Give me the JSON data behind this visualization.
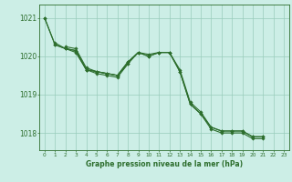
{
  "bg_color": "#cceee6",
  "grid_color": "#99ccbb",
  "line_color": "#2d6e2d",
  "marker_color": "#2d6e2d",
  "xlabel": "Graphe pression niveau de la mer (hPa)",
  "xlabel_fontsize": 5.5,
  "ytick_fontsize": 5.5,
  "xtick_fontsize": 4.2,
  "yticks": [
    1018,
    1019,
    1020,
    1021
  ],
  "xticks": [
    0,
    1,
    2,
    3,
    4,
    5,
    6,
    7,
    8,
    9,
    10,
    11,
    12,
    13,
    14,
    15,
    16,
    17,
    18,
    19,
    20,
    21,
    22,
    23
  ],
  "ylim": [
    1017.55,
    1021.35
  ],
  "xlim": [
    -0.5,
    23.5
  ],
  "series2": {
    "line1": {
      "x": [
        0,
        1,
        2,
        3,
        4,
        5,
        6,
        7,
        8,
        9,
        10,
        11,
        12,
        13,
        14,
        15,
        16,
        17,
        18,
        19,
        20,
        21
      ],
      "y": [
        1021.0,
        1020.3,
        1020.2,
        1020.15,
        1019.65,
        1019.6,
        1019.55,
        1019.5,
        1019.8,
        1020.1,
        1020.0,
        1020.1,
        1020.1,
        1019.6,
        1018.75,
        1018.5,
        1018.1,
        1018.0,
        1018.0,
        1018.0,
        1017.85,
        1017.85
      ]
    },
    "line2": {
      "x": [
        0,
        1,
        2,
        3,
        4,
        5,
        6,
        7,
        8
      ],
      "y": [
        1021.0,
        1020.3,
        1020.2,
        1020.1,
        1019.65,
        1019.55,
        1019.5,
        1019.45,
        1019.8
      ]
    },
    "line3": {
      "x": [
        2,
        3,
        4,
        5,
        6,
        7,
        8,
        9,
        10,
        11,
        12,
        13,
        14,
        15,
        16,
        17,
        18,
        19,
        20,
        21
      ],
      "y": [
        1020.25,
        1020.2,
        1019.7,
        1019.6,
        1019.55,
        1019.5,
        1019.85,
        1020.1,
        1020.05,
        1020.1,
        1020.1,
        1019.65,
        1018.8,
        1018.55,
        1018.15,
        1018.05,
        1018.05,
        1018.05,
        1017.9,
        1017.9
      ]
    },
    "line4": {
      "x": [
        1,
        2,
        3,
        4,
        5,
        6,
        7,
        8,
        9,
        10,
        11,
        12,
        13,
        14,
        15,
        16,
        17,
        18,
        19,
        20,
        21
      ],
      "y": [
        1020.35,
        1020.2,
        1020.15,
        1019.65,
        1019.6,
        1019.55,
        1019.5,
        1019.85,
        1020.1,
        1020.0,
        1020.1,
        1020.1,
        1019.6,
        1018.75,
        1018.5,
        1018.15,
        1018.05,
        1018.05,
        1018.05,
        1017.9,
        1017.9
      ]
    }
  }
}
